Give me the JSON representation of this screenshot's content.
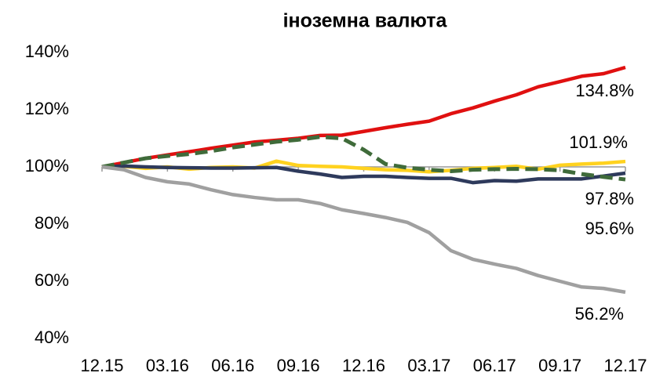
{
  "chart_data": {
    "type": "line",
    "title": "іноземна валюта",
    "categories": [
      "12.15",
      null,
      null,
      "03.16",
      null,
      null,
      "06.16",
      null,
      null,
      "09.16",
      null,
      null,
      "12.16",
      null,
      null,
      "03.17",
      null,
      null,
      "06.17",
      null,
      null,
      "09.17",
      null,
      null,
      "12.17"
    ],
    "series": [
      {
        "color": "#e01010",
        "dash": false,
        "values": [
          100,
          101.5,
          103,
          104.2,
          105.3,
          106.5,
          107.6,
          108.7,
          109.3,
          110,
          111,
          111.1,
          112.4,
          113.7,
          114.9,
          116,
          118.6,
          120.6,
          123,
          125.2,
          128,
          129.8,
          131.7,
          132.6,
          134.8
        ],
        "value_labels": [
          null,
          null,
          null,
          null,
          null,
          null,
          null,
          null,
          null,
          null,
          null,
          null,
          null,
          null,
          null,
          null,
          null,
          null,
          null,
          null,
          null,
          null,
          null,
          null,
          "134.8%"
        ]
      },
      {
        "color": "#ffd21f",
        "dash": false,
        "values": [
          100,
          100.2,
          99.5,
          100,
          99.2,
          99.8,
          100,
          99.6,
          102,
          100.5,
          100.2,
          100,
          99.5,
          99,
          98.8,
          98.3,
          98.8,
          99.5,
          99.8,
          100.2,
          99.2,
          100.6,
          101,
          101.3,
          101.9
        ],
        "value_labels": [
          null,
          null,
          null,
          null,
          null,
          null,
          null,
          null,
          null,
          null,
          null,
          null,
          null,
          null,
          null,
          null,
          null,
          null,
          null,
          null,
          null,
          null,
          null,
          null,
          "101.9%"
        ]
      },
      {
        "color": "#2e3a5c",
        "dash": false,
        "values": [
          100,
          100.3,
          100,
          99.8,
          99.7,
          99.6,
          99.6,
          99.7,
          99.8,
          98.5,
          97.5,
          96.3,
          96.7,
          96.7,
          96.3,
          96,
          96,
          94.5,
          95.2,
          95,
          95.8,
          95.8,
          95.8,
          96.8,
          97.8
        ],
        "value_labels": [
          null,
          null,
          null,
          null,
          null,
          null,
          null,
          null,
          null,
          null,
          null,
          null,
          null,
          null,
          null,
          null,
          null,
          null,
          null,
          null,
          null,
          null,
          null,
          null,
          "97.8%"
        ]
      },
      {
        "color": "#3f6b3a",
        "dash": true,
        "values": [
          100,
          101.5,
          103,
          103.8,
          104.5,
          105.5,
          106.8,
          107.8,
          108.8,
          109.5,
          110.5,
          110,
          106,
          101,
          99.7,
          99,
          98.5,
          99,
          99.2,
          99.3,
          99.2,
          98.8,
          97.5,
          96.5,
          95.6
        ],
        "value_labels": [
          null,
          null,
          null,
          null,
          null,
          null,
          null,
          null,
          null,
          null,
          null,
          null,
          null,
          null,
          null,
          null,
          null,
          null,
          null,
          null,
          null,
          null,
          null,
          null,
          "95.6%"
        ]
      },
      {
        "color": "#a0a0a0",
        "dash": false,
        "values": [
          100,
          99,
          96.3,
          94.8,
          94,
          92,
          90.3,
          89.3,
          88.5,
          88.5,
          87.2,
          85,
          83.7,
          82.3,
          80.6,
          77,
          70.7,
          67.7,
          66,
          64.5,
          62,
          60,
          58,
          57.5,
          56.2
        ],
        "value_labels": [
          null,
          null,
          null,
          null,
          null,
          null,
          null,
          null,
          null,
          null,
          null,
          null,
          null,
          null,
          null,
          null,
          null,
          null,
          null,
          null,
          null,
          null,
          null,
          null,
          "56.2%"
        ]
      }
    ],
    "ylim": [
      40,
      140
    ],
    "yticks": [
      {
        "value": 40,
        "label": "40%"
      },
      {
        "value": 60,
        "label": "60%"
      },
      {
        "value": 80,
        "label": "80%"
      },
      {
        "value": 100,
        "label": "100%"
      },
      {
        "value": 120,
        "label": "120%"
      },
      {
        "value": 140,
        "label": "140%"
      }
    ],
    "xaxis_cross": 100,
    "grid": false
  }
}
